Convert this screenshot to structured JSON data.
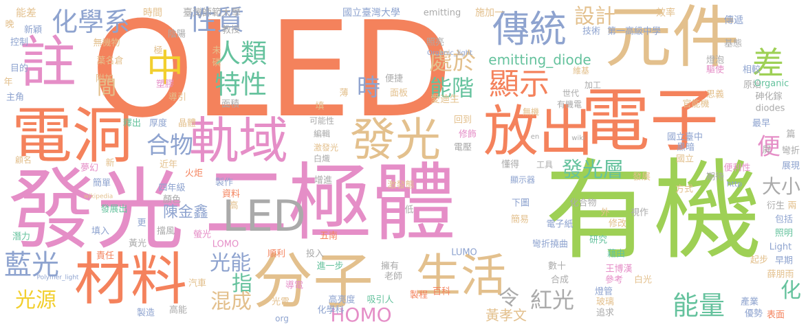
{
  "palette": {
    "orange": "#f4825c",
    "green": "#9ed055",
    "pink": "#e58ec7",
    "tan": "#e3c08d",
    "blue": "#8ea3cf",
    "teal": "#65c29d",
    "yellow": "#f2cf2e",
    "gray": "#aaaaaa"
  },
  "words": [
    {
      "text": "OLED",
      "color": "orange"
    },
    {
      "text": "有機",
      "color": "green"
    },
    {
      "text": "發光",
      "color": "pink"
    },
    {
      "text": "元件",
      "color": "tan"
    },
    {
      "text": "二極體",
      "color": "pink"
    },
    {
      "text": "電子",
      "color": "orange"
    },
    {
      "text": "電洞",
      "color": "orange"
    },
    {
      "text": "材料",
      "color": "orange"
    },
    {
      "text": "分子",
      "color": "tan"
    },
    {
      "text": "軌域",
      "color": "pink"
    },
    {
      "text": "放出",
      "color": "orange"
    },
    {
      "text": "發光",
      "color": "tan"
    },
    {
      "text": "LED",
      "color": "gray"
    },
    {
      "text": "註",
      "color": "pink"
    },
    {
      "text": "傳統",
      "color": "blue"
    },
    {
      "text": "生活",
      "color": "tan"
    },
    {
      "text": "差",
      "color": "green"
    },
    {
      "text": "中",
      "color": "yellow"
    },
    {
      "text": "藍光",
      "color": "blue"
    },
    {
      "text": "化學系",
      "color": "blue"
    },
    {
      "text": "性質",
      "color": "blue"
    },
    {
      "text": "人類",
      "color": "teal"
    },
    {
      "text": "特性",
      "color": "teal"
    },
    {
      "text": "處於",
      "color": "tan"
    },
    {
      "text": "能階",
      "color": "teal"
    },
    {
      "text": "顯示",
      "color": "orange"
    },
    {
      "text": "設計",
      "color": "tan"
    },
    {
      "text": "時",
      "color": "blue"
    },
    {
      "text": "合物",
      "color": "blue"
    },
    {
      "text": "間",
      "color": "tan"
    },
    {
      "text": "能量",
      "color": "teal"
    },
    {
      "text": "HOMO",
      "color": "pink"
    },
    {
      "text": "紅光",
      "color": "gray"
    },
    {
      "text": "光源",
      "color": "yellow"
    },
    {
      "text": "混成",
      "color": "tan"
    },
    {
      "text": "光能",
      "color": "blue"
    },
    {
      "text": "指",
      "color": "teal"
    },
    {
      "text": "發光層",
      "color": "teal"
    },
    {
      "text": "大小",
      "color": "gray"
    },
    {
      "text": "便",
      "color": "pink"
    },
    {
      "text": "化",
      "color": "teal"
    },
    {
      "text": "令",
      "color": "gray"
    },
    {
      "text": "emitting_diode",
      "color": "teal"
    },
    {
      "text": "陳金鑫",
      "color": "blue"
    },
    {
      "text": "黃孝文",
      "color": "tan"
    },
    {
      "text": "能差",
      "color": "tan"
    },
    {
      "text": "時間",
      "color": "tan"
    },
    {
      "text": "臺灣師範大學",
      "color": "gray"
    },
    {
      "text": "國立臺灣大學",
      "color": "blue"
    },
    {
      "text": "emitting",
      "color": "gray"
    },
    {
      "text": "施加一",
      "color": "tan"
    },
    {
      "text": "效率",
      "color": "tan"
    },
    {
      "text": "晚",
      "color": "tan"
    },
    {
      "text": "新穎",
      "color": "blue"
    },
    {
      "text": "控制",
      "color": "blue"
    },
    {
      "text": "教授",
      "color": "gray"
    },
    {
      "text": "陰陽",
      "color": "gray"
    },
    {
      "text": "照亮",
      "color": "gray"
    },
    {
      "text": "Organic_light",
      "color": "blue"
    },
    {
      "text": "技術",
      "color": "blue"
    },
    {
      "text": "第一高級中學",
      "color": "blue"
    },
    {
      "text": "傳遞",
      "color": "blue"
    },
    {
      "text": "無機物",
      "color": "tan"
    },
    {
      "text": "葉名倉",
      "color": "tan"
    },
    {
      "text": "極",
      "color": "tan"
    },
    {
      "text": "未",
      "color": "tan"
    },
    {
      "text": "磷",
      "color": "tan"
    },
    {
      "text": "燈泡",
      "color": "gray"
    },
    {
      "text": "基態",
      "color": "gray"
    },
    {
      "text": "目的",
      "color": "blue"
    },
    {
      "text": "附加",
      "color": "tan"
    },
    {
      "text": "塑膠",
      "color": "pink"
    },
    {
      "text": "導引",
      "color": "tan"
    },
    {
      "text": "便捷",
      "color": "gray"
    },
    {
      "text": "面板",
      "color": "tan"
    },
    {
      "text": "愛迪生",
      "color": "tan"
    },
    {
      "text": "薄",
      "color": "tan"
    },
    {
      "text": "維基",
      "color": "tan"
    },
    {
      "text": "驅使",
      "color": "pink"
    },
    {
      "text": "相較",
      "color": "blue"
    },
    {
      "text": "思義",
      "color": "tan"
    },
    {
      "text": "原始",
      "color": "gray"
    },
    {
      "text": "Organic",
      "color": "teal"
    },
    {
      "text": "砷化鎵",
      "color": "gray"
    },
    {
      "text": "年",
      "color": "tan"
    },
    {
      "text": "主角",
      "color": "blue"
    },
    {
      "text": "加工",
      "color": "gray"
    },
    {
      "text": "世代",
      "color": "gray"
    },
    {
      "text": "有機電",
      "color": "gray"
    },
    {
      "text": "官能機",
      "color": "tan"
    },
    {
      "text": "diodes",
      "color": "gray"
    },
    {
      "text": "面積",
      "color": "gray"
    },
    {
      "text": "填",
      "color": "tan"
    },
    {
      "text": "無機",
      "color": "tan"
    },
    {
      "text": "釋出",
      "color": "teal"
    },
    {
      "text": "厚度",
      "color": "blue"
    },
    {
      "text": "晶體",
      "color": "tan"
    },
    {
      "text": "可能性",
      "color": "gray"
    },
    {
      "text": "回到",
      "color": "tan"
    },
    {
      "text": "修飾",
      "color": "pink"
    },
    {
      "text": "國立臺中",
      "color": "blue"
    },
    {
      "text": "最早",
      "color": "blue"
    },
    {
      "text": "篇",
      "color": "gray"
    },
    {
      "text": "編輯",
      "color": "gray"
    },
    {
      "text": "激發光",
      "color": "tan"
    },
    {
      "text": "白熾",
      "color": "gray"
    },
    {
      "text": "en",
      "color": "gray"
    },
    {
      "text": "wiki",
      "color": "gray"
    },
    {
      "text": "屏",
      "color": "gray"
    },
    {
      "text": "黑暗",
      "color": "blue"
    },
    {
      "text": "國立",
      "color": "tan"
    },
    {
      "text": "彎折",
      "color": "gray"
    },
    {
      "text": "顧名",
      "color": "tan"
    },
    {
      "text": "夢幻",
      "color": "pink"
    },
    {
      "text": "新",
      "color": "tan"
    },
    {
      "text": "近年",
      "color": "tan"
    },
    {
      "text": "火炬",
      "color": "orange"
    },
    {
      "text": "電壓",
      "color": "gray"
    },
    {
      "text": "懂得",
      "color": "gray"
    },
    {
      "text": "工具",
      "color": "gray"
    },
    {
      "text": "期待",
      "color": "gray"
    },
    {
      "text": "展現",
      "color": "blue"
    },
    {
      "text": "簡單",
      "color": "blue"
    },
    {
      "text": "四年級",
      "color": "blue"
    },
    {
      "text": "增進",
      "color": "gray"
    },
    {
      "text": "激發態",
      "color": "tan"
    },
    {
      "text": "顯示器",
      "color": "blue"
    },
    {
      "text": "發展",
      "color": "tan"
    },
    {
      "text": "方式",
      "color": "tan"
    },
    {
      "text": "便利性",
      "color": "pink"
    },
    {
      "text": "http",
      "color": "blue"
    },
    {
      "text": "顏色",
      "color": "gray"
    },
    {
      "text": "製作",
      "color": "blue"
    },
    {
      "text": "資料",
      "color": "orange"
    },
    {
      "text": "wikipedia",
      "color": "tan"
    },
    {
      "text": "發展出",
      "color": "teal"
    },
    {
      "text": "更",
      "color": "blue"
    },
    {
      "text": "高",
      "color": "tan"
    },
    {
      "text": "低",
      "color": "gray"
    },
    {
      "text": "下圖",
      "color": "blue"
    },
    {
      "text": "化合物",
      "color": "gray"
    },
    {
      "text": "外",
      "color": "tan"
    },
    {
      "text": "視作",
      "color": "gray"
    },
    {
      "text": "衍生",
      "color": "gray"
    },
    {
      "text": "兩",
      "color": "tan"
    },
    {
      "text": "包括",
      "color": "blue"
    },
    {
      "text": "潛力",
      "color": "teal"
    },
    {
      "text": "填入",
      "color": "blue"
    },
    {
      "text": "黃光",
      "color": "gray"
    },
    {
      "text": "五南",
      "color": "orange"
    },
    {
      "text": "簡易",
      "color": "tan"
    },
    {
      "text": "電子紙",
      "color": "blue"
    },
    {
      "text": "修改",
      "color": "tan"
    },
    {
      "text": "照明",
      "color": "teal"
    },
    {
      "text": "擋風",
      "color": "gray"
    },
    {
      "text": "螢光",
      "color": "pink"
    },
    {
      "text": "LOMO",
      "color": "pink"
    },
    {
      "text": "彎折撓曲",
      "color": "blue"
    },
    {
      "text": "研究",
      "color": "teal"
    },
    {
      "text": "Light",
      "color": "blue"
    },
    {
      "text": "責任",
      "color": "orange"
    },
    {
      "text": "順利",
      "color": "orange"
    },
    {
      "text": "投入",
      "color": "gray"
    },
    {
      "text": "LUMO",
      "color": "blue"
    },
    {
      "text": "數十",
      "color": "gray"
    },
    {
      "text": "藉由",
      "color": "teal"
    },
    {
      "text": "起步",
      "color": "tan"
    },
    {
      "text": "早期",
      "color": "blue"
    },
    {
      "text": "Polymer_light",
      "color": "blue"
    },
    {
      "text": "汽車",
      "color": "tan"
    },
    {
      "text": "進一步",
      "color": "teal"
    },
    {
      "text": "擁有",
      "color": "gray"
    },
    {
      "text": "合成",
      "color": "gray"
    },
    {
      "text": "王博漢",
      "color": "pink"
    },
    {
      "text": "參考",
      "color": "pink"
    },
    {
      "text": "白光",
      "color": "tan"
    },
    {
      "text": "薛朋雨",
      "color": "tan"
    },
    {
      "text": "導電",
      "color": "pink"
    },
    {
      "text": "老師",
      "color": "gray"
    },
    {
      "text": "燈管",
      "color": "blue"
    },
    {
      "text": "玻璃",
      "color": "tan"
    },
    {
      "text": "追求",
      "color": "gray"
    },
    {
      "text": "光電",
      "color": "tan"
    },
    {
      "text": "高亮度",
      "color": "blue"
    },
    {
      "text": "吸引人",
      "color": "teal"
    },
    {
      "text": "製程",
      "color": "orange"
    },
    {
      "text": "百科",
      "color": "orange"
    },
    {
      "text": "產業",
      "color": "blue"
    },
    {
      "text": "製造",
      "color": "blue"
    },
    {
      "text": "高能",
      "color": "gray"
    },
    {
      "text": "org",
      "color": "blue"
    },
    {
      "text": "化學科",
      "color": "blue"
    },
    {
      "text": "優勢",
      "color": "blue"
    },
    {
      "text": "表面",
      "color": "orange"
    }
  ]
}
